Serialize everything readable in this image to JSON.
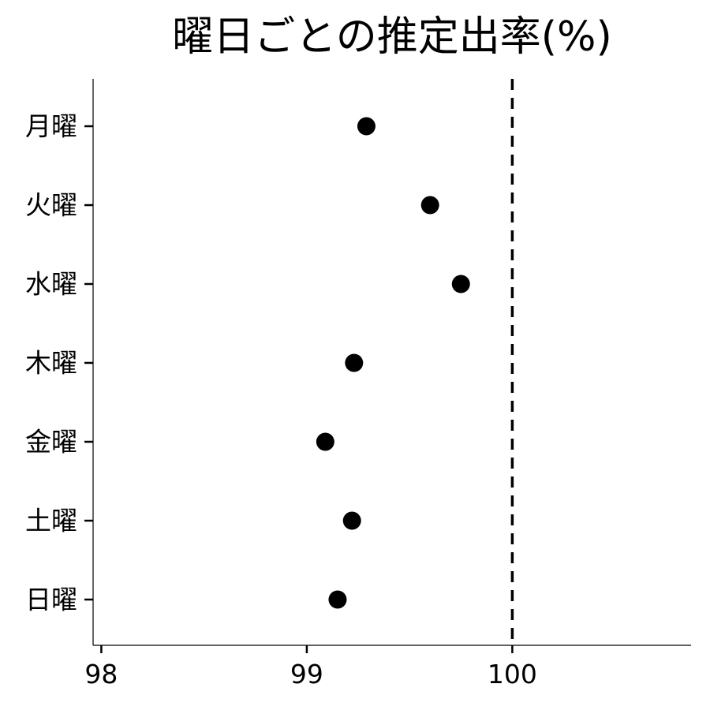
{
  "chart_data": {
    "type": "scatter",
    "title": "曜日ごとの推定出率(%)",
    "xlabel": "",
    "ylabel": "",
    "categories": [
      "月曜",
      "火曜",
      "水曜",
      "木曜",
      "金曜",
      "土曜",
      "日曜"
    ],
    "values": [
      99.29,
      99.6,
      99.75,
      99.23,
      99.09,
      99.22,
      99.15
    ],
    "xlim": [
      97.96,
      100.87
    ],
    "xticks": [
      98,
      99,
      100
    ],
    "xtick_labels": [
      "98",
      "99",
      "100"
    ],
    "reference_line": {
      "x": 100,
      "style": "dashed"
    },
    "grid": false,
    "legend": "none",
    "colors": {
      "points": "#000000",
      "axis": "#000000",
      "reference_line": "#000000"
    }
  }
}
